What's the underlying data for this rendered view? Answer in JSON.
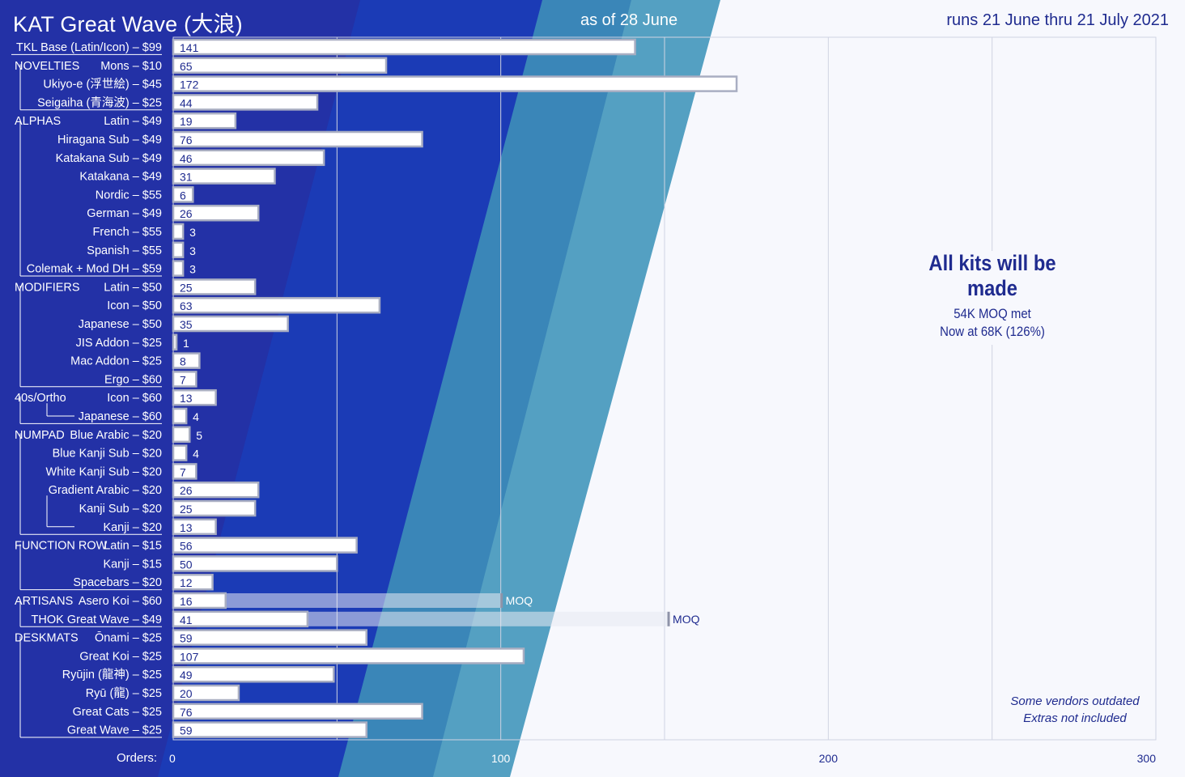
{
  "header": {
    "title": "KAT Great Wave (大浪)",
    "as_of": "as of 28 June",
    "runs": "runs 21 June thru 21 July 2021"
  },
  "note": {
    "headline": "All kits will be made",
    "line1": "54K MOQ met",
    "line2": "Now at 68K (126%)"
  },
  "vendor_note": {
    "line1": "Some vendors outdated",
    "line2": "Extras not included"
  },
  "colors": {
    "navy": "#1f2b8f",
    "band_dark": "#2331a6",
    "band_blue": "#1b3bb6",
    "band_mid": "#3a86b8",
    "band_light": "#54a0c2",
    "bar_fill": "#ffffff",
    "bar_border": "#a9aec2",
    "moq_fill": "#e8e9f2"
  },
  "chart_data": {
    "type": "bar",
    "orientation": "horizontal",
    "title": "KAT Great Wave (大浪)",
    "xlabel": "Orders:",
    "xlim": [
      0,
      300
    ],
    "xticks": [
      0,
      100,
      200,
      300
    ],
    "grid": true,
    "bars": [
      {
        "group": "",
        "label": "TKL Base (Latin/Icon) – $99",
        "value": 141
      },
      {
        "group": "NOVELTIES",
        "label": "Mons – $10",
        "value": 65
      },
      {
        "group": "",
        "label": "Ukiyo-e (浮世絵) – $45",
        "value": 172
      },
      {
        "group": "",
        "label": "Seigaiha (青海波) – $25",
        "value": 44
      },
      {
        "group": "ALPHAS",
        "label": "Latin – $49",
        "value": 19
      },
      {
        "group": "",
        "label": "Hiragana Sub – $49",
        "value": 76
      },
      {
        "group": "",
        "label": "Katakana Sub – $49",
        "value": 46
      },
      {
        "group": "",
        "label": "Katakana – $49",
        "value": 31
      },
      {
        "group": "",
        "label": "Nordic – $55",
        "value": 6
      },
      {
        "group": "",
        "label": "German – $49",
        "value": 26
      },
      {
        "group": "",
        "label": "French – $55",
        "value": 3
      },
      {
        "group": "",
        "label": "Spanish – $55",
        "value": 3
      },
      {
        "group": "",
        "label": "Colemak + Mod DH – $59",
        "value": 3
      },
      {
        "group": "MODIFIERS",
        "label": "Latin – $50",
        "value": 25
      },
      {
        "group": "",
        "label": "Icon – $50",
        "value": 63
      },
      {
        "group": "",
        "label": "Japanese – $50",
        "value": 35
      },
      {
        "group": "",
        "label": "JIS Addon – $25",
        "value": 1
      },
      {
        "group": "",
        "label": "Mac Addon – $25",
        "value": 8
      },
      {
        "group": "",
        "label": "Ergo – $60",
        "value": 7
      },
      {
        "group": "40s/Ortho",
        "label": "Icon – $60",
        "value": 13
      },
      {
        "group": "",
        "label": "Japanese – $60",
        "value": 4
      },
      {
        "group": "NUMPAD",
        "label": "Blue Arabic – $20",
        "value": 5
      },
      {
        "group": "",
        "label": "Blue Kanji Sub – $20",
        "value": 4
      },
      {
        "group": "",
        "label": "White Kanji Sub – $20",
        "value": 7
      },
      {
        "group": "",
        "label": "Gradient  Arabic – $20",
        "value": 26
      },
      {
        "group": "",
        "label": "Kanji Sub – $20",
        "value": 25
      },
      {
        "group": "",
        "label": "Kanji – $20",
        "value": 13
      },
      {
        "group": "FUNCTION ROW",
        "label": "Latin – $15",
        "value": 56
      },
      {
        "group": "",
        "label": "Kanji – $15",
        "value": 50
      },
      {
        "group": "",
        "label": "Spacebars – $20",
        "value": 12
      },
      {
        "group": "ARTISANS",
        "label": "Asero Koi – $60",
        "value": 16,
        "moq": 100,
        "moq_label": "MOQ"
      },
      {
        "group": "",
        "label": "THOK Great Wave – $49",
        "value": 41,
        "moq": 151,
        "moq_label": "MOQ"
      },
      {
        "group": "DESKMATS",
        "label": "Ōnami – $25",
        "value": 59
      },
      {
        "group": "",
        "label": "Great Koi – $25",
        "value": 107
      },
      {
        "group": "",
        "label": "Ryūjin (龍神) – $25",
        "value": 49
      },
      {
        "group": "",
        "label": "Ryū (龍) – $25",
        "value": 20
      },
      {
        "group": "",
        "label": "Great Cats – $25",
        "value": 76
      },
      {
        "group": "",
        "label": "Great Wave – $25",
        "value": 59
      }
    ]
  }
}
